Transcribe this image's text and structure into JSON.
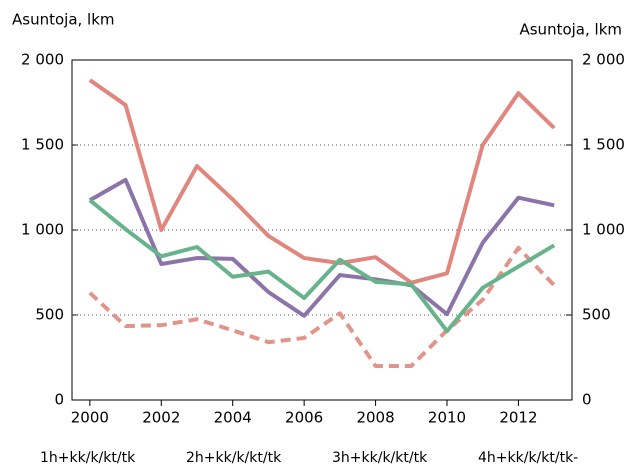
{
  "chart_data": {
    "type": "line",
    "y_label": "Asuntoja, lkm",
    "y2_label": "Asuntoja, lkm",
    "x": [
      2000,
      2001,
      2002,
      2003,
      2004,
      2005,
      2006,
      2007,
      2008,
      2009,
      2010,
      2011,
      2012,
      2013
    ],
    "xlim": [
      1999.5,
      2013.5
    ],
    "xticks": [
      2000,
      2002,
      2004,
      2006,
      2008,
      2010,
      2012
    ],
    "ylim": [
      0,
      2000
    ],
    "yticks": [
      0,
      {
        "value": 500,
        "label": "500"
      },
      {
        "value": 1000,
        "label": "1 000"
      },
      {
        "value": 1500,
        "label": "1 500"
      },
      {
        "value": 2000,
        "label": "2 000"
      }
    ],
    "y2lim": [
      0,
      2000
    ],
    "y2ticks": [
      0,
      {
        "value": 500,
        "label": "500"
      },
      {
        "value": 1000,
        "label": "1 000"
      },
      {
        "value": 1500,
        "label": "1 500"
      },
      {
        "value": 2000,
        "label": "2 000"
      }
    ],
    "grid": true,
    "series": [
      {
        "name": "1h+kk/k/kt/tk",
        "color": "#e3948a",
        "dashed": true,
        "values": [
          630,
          435,
          440,
          475,
          410,
          340,
          365,
          510,
          200,
          200,
          410,
          590,
          895,
          675
        ]
      },
      {
        "name": "2h+kk/k/kt/tk",
        "color": "#e0867e",
        "values": [
          1882,
          1735,
          1000,
          1376,
          1180,
          965,
          835,
          805,
          840,
          690,
          745,
          1500,
          1805,
          1600
        ]
      },
      {
        "name": "3h+kk/k/kt/tk",
        "color": "#8c73a8",
        "values": [
          1175,
          1295,
          800,
          835,
          830,
          635,
          495,
          735,
          710,
          675,
          505,
          925,
          1190,
          1145
        ]
      },
      {
        "name": "4h+kk/k/kt/tk-",
        "color": "#67b38b",
        "values": [
          1175,
          1005,
          845,
          900,
          725,
          755,
          600,
          825,
          695,
          680,
          405,
          660,
          785,
          910
        ]
      }
    ]
  }
}
